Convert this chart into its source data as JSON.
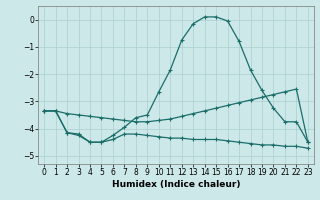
{
  "xlabel": "Humidex (Indice chaleur)",
  "background_color": "#cde8e8",
  "grid_color": "#aacfcf",
  "line_color": "#1a6e6a",
  "xlim": [
    -0.5,
    23.5
  ],
  "ylim": [
    -5.3,
    0.5
  ],
  "yticks": [
    0,
    -1,
    -2,
    -3,
    -4,
    -5
  ],
  "xticks": [
    0,
    1,
    2,
    3,
    4,
    5,
    6,
    7,
    8,
    9,
    10,
    11,
    12,
    13,
    14,
    15,
    16,
    17,
    18,
    19,
    20,
    21,
    22,
    23
  ],
  "line1_x": [
    0,
    1,
    2,
    3,
    4,
    5,
    6,
    7,
    8,
    9,
    10,
    11,
    12,
    13,
    14,
    15,
    16,
    17,
    18,
    19,
    20,
    21,
    22,
    23
  ],
  "line1_y": [
    -3.35,
    -3.35,
    -4.15,
    -4.2,
    -4.5,
    -4.5,
    -4.25,
    -3.95,
    -3.6,
    -3.5,
    -2.65,
    -1.85,
    -0.75,
    -0.15,
    0.1,
    0.1,
    -0.05,
    -0.8,
    -1.85,
    -2.6,
    -3.25,
    -3.75,
    -3.75,
    -4.5
  ],
  "line2_x": [
    0,
    1,
    2,
    3,
    4,
    5,
    6,
    7,
    8,
    9,
    10,
    11,
    12,
    13,
    14,
    15,
    16,
    17,
    18,
    19,
    20,
    21,
    22,
    23
  ],
  "line2_y": [
    -3.35,
    -3.35,
    -3.45,
    -3.5,
    -3.55,
    -3.6,
    -3.65,
    -3.7,
    -3.75,
    -3.75,
    -3.7,
    -3.65,
    -3.55,
    -3.45,
    -3.35,
    -3.25,
    -3.15,
    -3.05,
    -2.95,
    -2.85,
    -2.75,
    -2.65,
    -2.55,
    -4.5
  ],
  "line3_x": [
    0,
    1,
    2,
    3,
    4,
    5,
    6,
    7,
    8,
    9,
    10,
    11,
    12,
    13,
    14,
    15,
    16,
    17,
    18,
    19,
    20,
    21,
    22,
    23
  ],
  "line3_y": [
    -3.35,
    -3.35,
    -4.15,
    -4.25,
    -4.5,
    -4.5,
    -4.4,
    -4.2,
    -4.2,
    -4.25,
    -4.3,
    -4.35,
    -4.35,
    -4.4,
    -4.4,
    -4.4,
    -4.45,
    -4.5,
    -4.55,
    -4.6,
    -4.6,
    -4.65,
    -4.65,
    -4.72
  ]
}
